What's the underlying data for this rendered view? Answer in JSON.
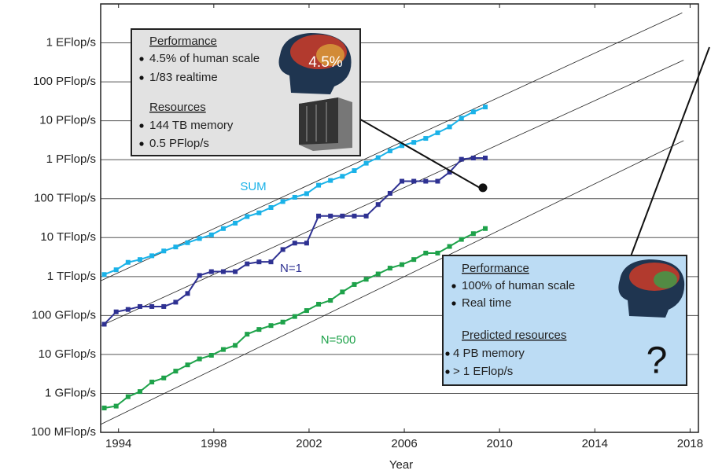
{
  "chart_data": {
    "type": "line",
    "x_label": "Year",
    "log_y": true,
    "grid": true,
    "xlim": [
      1993.25,
      2018.35
    ],
    "ylim": [
      0.1,
      10000000000
    ],
    "xticks": [
      1994,
      1998,
      2002,
      2006,
      2010,
      2014,
      2018
    ],
    "yticks": [
      {
        "value": 0.1,
        "label": "100 MFlop/s"
      },
      {
        "value": 1,
        "label": "1 GFlop/s"
      },
      {
        "value": 10,
        "label": "10 GFlop/s"
      },
      {
        "value": 100,
        "label": "100 GFlop/s"
      },
      {
        "value": 1000,
        "label": "1 TFlop/s"
      },
      {
        "value": 10000,
        "label": "10 TFlop/s"
      },
      {
        "value": 100000,
        "label": "100 TFlop/s"
      },
      {
        "value": 1000000,
        "label": "1 PFlop/s"
      },
      {
        "value": 10000000,
        "label": "10 PFlop/s"
      },
      {
        "value": 100000000,
        "label": "100 PFlop/s"
      },
      {
        "value": 1000000000,
        "label": "1 EFlop/s"
      }
    ],
    "x": [
      1993.4,
      1993.9,
      1994.4,
      1994.9,
      1995.4,
      1995.9,
      1996.4,
      1996.9,
      1997.4,
      1997.9,
      1998.4,
      1998.9,
      1999.4,
      1999.9,
      2000.4,
      2000.9,
      2001.4,
      2001.9,
      2002.4,
      2002.9,
      2003.4,
      2003.9,
      2004.4,
      2004.9,
      2005.4,
      2005.9,
      2006.4,
      2006.9,
      2007.4,
      2007.9,
      2008.4,
      2008.9,
      2009.4
    ],
    "series": [
      {
        "name": "SUM",
        "color": "#1ab2e8",
        "values": [
          1128,
          1493,
          2317,
          2732,
          3417,
          4536,
          5753,
          7401,
          9475,
          11755,
          17068,
          23523,
          34725,
          43245,
          59260,
          84345,
          108534,
          134520,
          221670,
          293125,
          374860,
          525900,
          813770,
          1131000,
          1690000,
          2300000,
          2790000,
          3530000,
          4920000,
          6970000,
          11700000,
          16950000,
          22600000
        ]
      },
      {
        "name": "N=1",
        "color": "#2e3192",
        "values": [
          59.7,
          124,
          143,
          170,
          170,
          170,
          220,
          368,
          1068,
          1338,
          1338,
          1338,
          2121,
          2379,
          2379,
          4938,
          7226,
          7226,
          35860,
          35860,
          35860,
          35860,
          35860,
          70720,
          136800,
          280600,
          280600,
          280600,
          280600,
          478200,
          1026000,
          1105000,
          1105000
        ]
      },
      {
        "name": "N=500",
        "color": "#1ea24a",
        "values": [
          0.422,
          0.472,
          0.822,
          1.114,
          1.96,
          2.49,
          3.73,
          5.39,
          7.68,
          9.51,
          13.4,
          17.1,
          33.1,
          43.8,
          55.1,
          67.8,
          94.3,
          134,
          195,
          245,
          403,
          625,
          851,
          1166,
          1646,
          2026,
          2736,
          4005,
          4005,
          5929,
          9000,
          12640,
          17090
        ]
      }
    ],
    "trend_lines": [
      {
        "x": [
          1993.25,
          2017.67
        ],
        "values": [
          776,
          5900000000
        ]
      },
      {
        "x": [
          1993.25,
          2017.73
        ],
        "values": [
          54,
          360000000
        ]
      },
      {
        "x": [
          1993.25,
          2017.73
        ],
        "values": [
          0.16,
          3100000
        ]
      }
    ],
    "projection_point": {
      "x": 2009.3,
      "value": 190000
    },
    "annotations": {
      "current": {
        "heading1": "Performance",
        "items1": [
          "4.5% of human scale",
          "1/83 realtime"
        ],
        "heading2": "Resources",
        "items2": [
          "144 TB memory",
          "0.5 PFlop/s"
        ],
        "badge": "4.5%"
      },
      "target": {
        "heading1": "Performance",
        "items1": [
          "100% of human scale",
          "Real time"
        ],
        "heading2": "Predicted resources",
        "items2": [
          "4 PB memory",
          "> 1 EFlop/s"
        ],
        "badge": "?"
      }
    }
  }
}
